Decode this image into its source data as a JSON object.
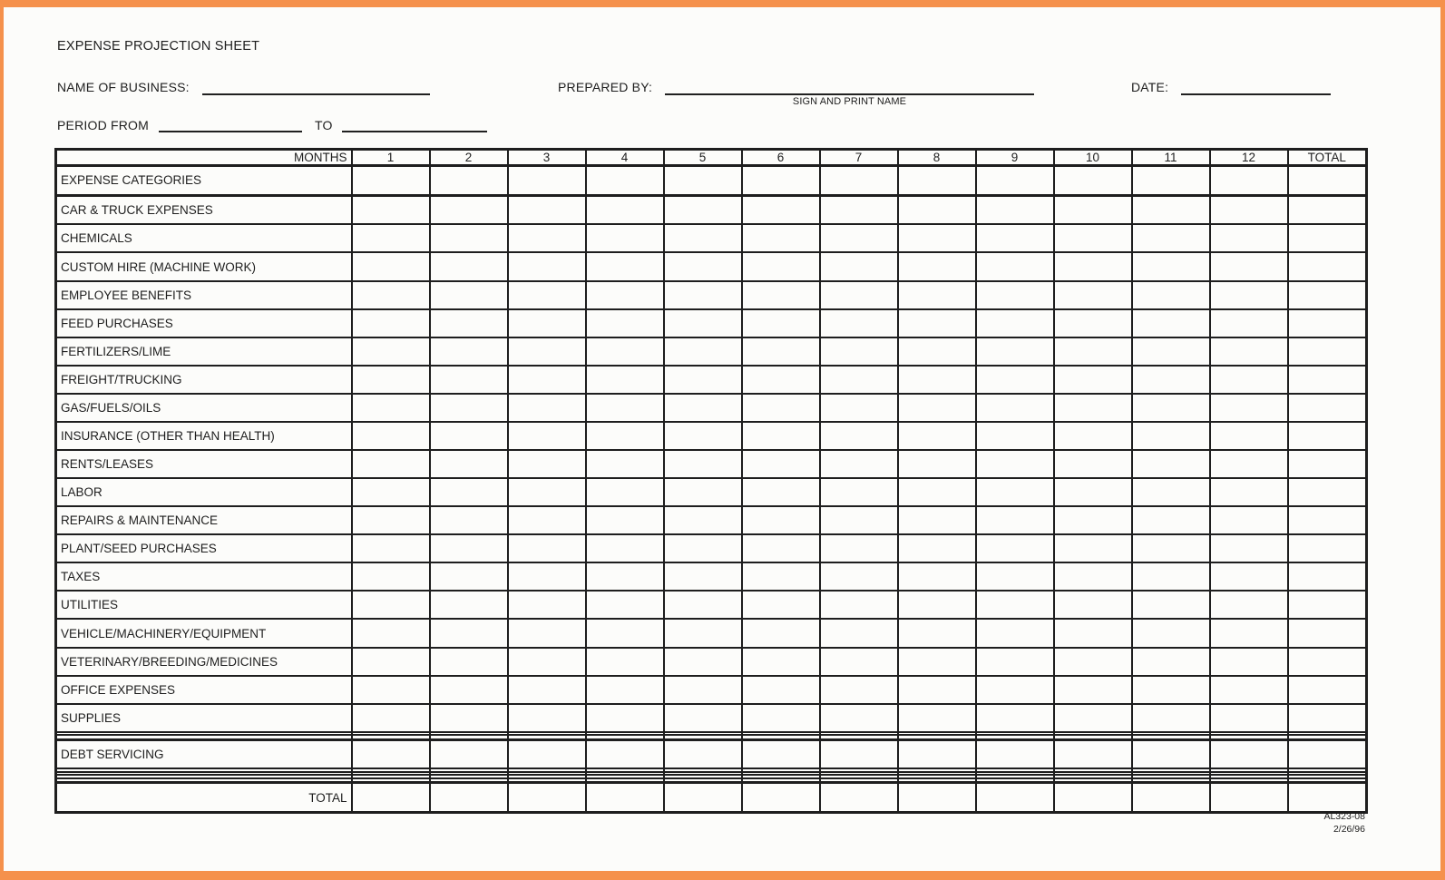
{
  "header": {
    "title": "EXPENSE PROJECTION SHEET",
    "name_of_business_label": "NAME OF BUSINESS:",
    "name_of_business_value": "",
    "prepared_by_label": "PREPARED BY:",
    "prepared_by_value": "",
    "sign_and_print_name_caption": "SIGN AND PRINT NAME",
    "date_label": "DATE:",
    "date_value": "",
    "period_from_label": "PERIOD FROM",
    "period_from_value": "",
    "to_label": "TO",
    "period_to_value": ""
  },
  "table": {
    "months_label": "MONTHS",
    "month_columns": [
      "1",
      "2",
      "3",
      "4",
      "5",
      "6",
      "7",
      "8",
      "9",
      "10",
      "11",
      "12"
    ],
    "total_column_label": "TOTAL",
    "categories_header": "EXPENSE CATEGORIES",
    "rows": [
      "CAR & TRUCK EXPENSES",
      "CHEMICALS",
      "CUSTOM HIRE (MACHINE WORK)",
      "EMPLOYEE BENEFITS",
      "FEED PURCHASES",
      "FERTILIZERS/LIME",
      "FREIGHT/TRUCKING",
      "GAS/FUELS/OILS",
      "INSURANCE (OTHER THAN HEALTH)",
      "RENTS/LEASES",
      "LABOR",
      "REPAIRS & MAINTENANCE",
      "PLANT/SEED PURCHASES",
      "TAXES",
      "UTILITIES",
      "VEHICLE/MACHINERY/EQUIPMENT",
      "VETERINARY/BREEDING/MEDICINES",
      "OFFICE EXPENSES",
      "SUPPLIES",
      "",
      "",
      "DEBT SERVICING",
      "",
      "",
      "",
      ""
    ],
    "total_row_label": "TOTAL",
    "cell_values_note": ""
  },
  "footer": {
    "form_number": "AL323-08",
    "form_date": "2/26/96"
  },
  "colors": {
    "frame": "#f5914c",
    "ink": "#1e1e1e",
    "paper": "#fcfcfa"
  }
}
